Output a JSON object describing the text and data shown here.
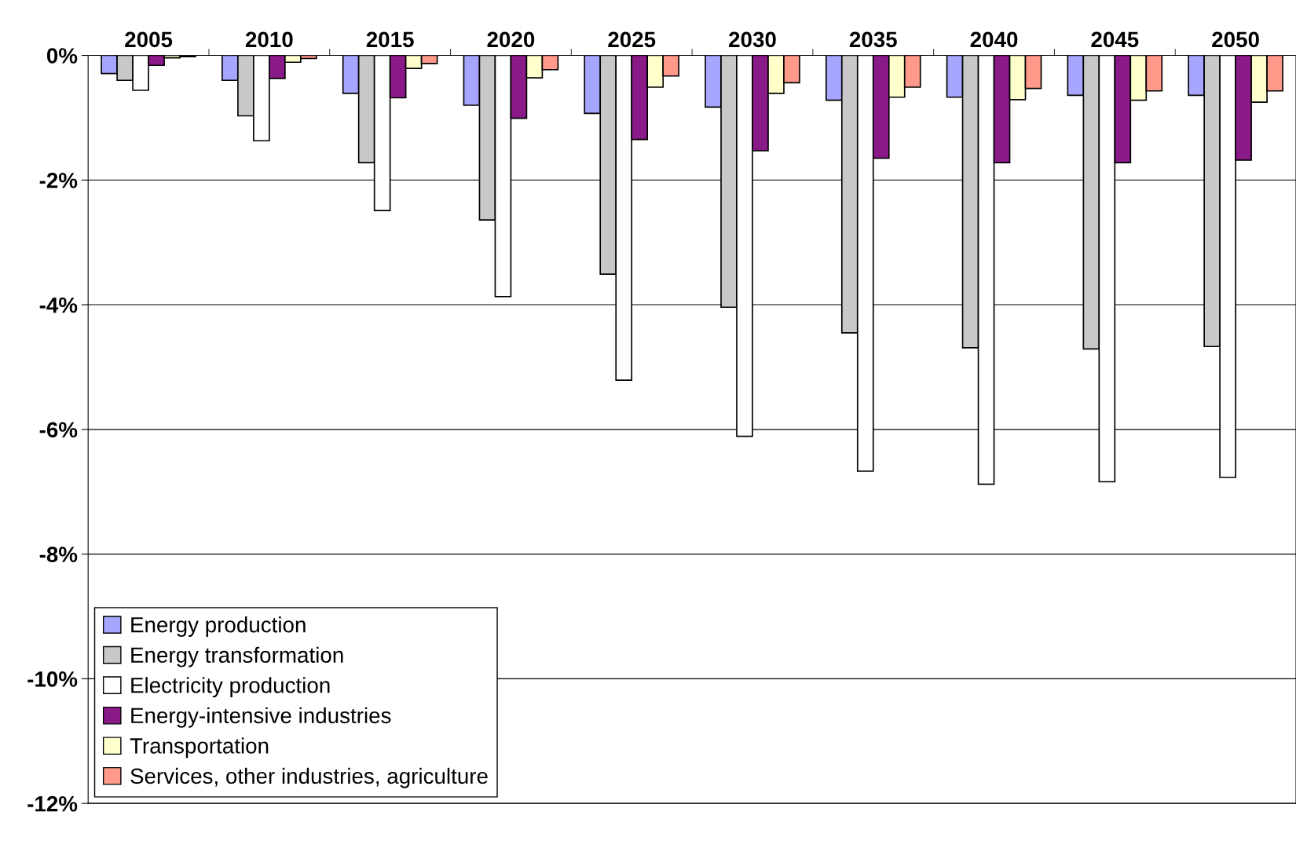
{
  "chart_data": {
    "type": "bar",
    "categories": [
      "2005",
      "2010",
      "2015",
      "2020",
      "2025",
      "2030",
      "2035",
      "2040",
      "2045",
      "2050"
    ],
    "series": [
      {
        "name": "Energy production",
        "color": "#a6a6ff",
        "values": [
          -0.29,
          -0.4,
          -0.61,
          -0.8,
          -0.93,
          -0.83,
          -0.72,
          -0.67,
          -0.64,
          -0.64
        ]
      },
      {
        "name": "Energy transformation",
        "color": "#c8c8c8",
        "values": [
          -0.4,
          -0.97,
          -1.72,
          -2.64,
          -3.51,
          -4.04,
          -4.45,
          -4.69,
          -4.71,
          -4.67
        ]
      },
      {
        "name": "Electricity production",
        "color": "#ffffff",
        "values": [
          -0.56,
          -1.37,
          -2.49,
          -3.87,
          -5.21,
          -6.11,
          -6.67,
          -6.88,
          -6.84,
          -6.77
        ]
      },
      {
        "name": "Energy-intensive industries",
        "color": "#8b1a89",
        "values": [
          -0.16,
          -0.37,
          -0.68,
          -1.01,
          -1.35,
          -1.53,
          -1.65,
          -1.72,
          -1.72,
          -1.68
        ]
      },
      {
        "name": "Transportation",
        "color": "#ffffcc",
        "values": [
          -0.04,
          -0.11,
          -0.21,
          -0.36,
          -0.51,
          -0.61,
          -0.67,
          -0.71,
          -0.72,
          -0.75
        ]
      },
      {
        "name": "Services, other industries, agriculture",
        "color": "#ff9a8a",
        "values": [
          -0.02,
          -0.05,
          -0.13,
          -0.23,
          -0.33,
          -0.44,
          -0.51,
          -0.53,
          -0.57,
          -0.57
        ]
      }
    ],
    "ylim": [
      -12,
      0
    ],
    "yticks": [
      {
        "value": 0,
        "label": "0%"
      },
      {
        "value": -2,
        "label": "-2%"
      },
      {
        "value": -4,
        "label": "-4%"
      },
      {
        "value": -6,
        "label": "-6%"
      },
      {
        "value": -8,
        "label": "-8%"
      },
      {
        "value": -10,
        "label": "-10%"
      },
      {
        "value": -12,
        "label": "-12%"
      }
    ],
    "grid": "y",
    "legend": "bottom left"
  }
}
